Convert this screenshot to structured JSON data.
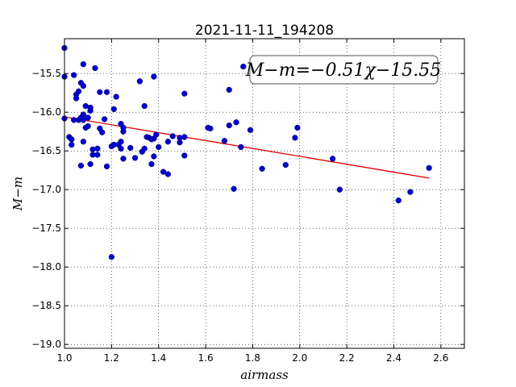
{
  "chart_data": {
    "type": "scatter",
    "title": "2021-11-11_194208",
    "xlabel": "airmass",
    "ylabel": "M−m",
    "annotation": "M−m=−0.51χ−15.55",
    "xlim": [
      1.0,
      2.7
    ],
    "ylim": [
      -19.05,
      -15.05
    ],
    "y_inverted": false,
    "grid": true,
    "xticks": [
      1.0,
      1.2,
      1.4,
      1.6,
      1.8,
      2.0,
      2.2,
      2.4,
      2.6
    ],
    "xtick_labels": [
      "1.0",
      "1.2",
      "1.4",
      "1.6",
      "1.8",
      "2.0",
      "2.2",
      "2.4",
      "2.6"
    ],
    "yticks": [
      -15.5,
      -16.0,
      -16.5,
      -17.0,
      -17.5,
      -18.0,
      -18.5,
      -19.0
    ],
    "ytick_labels": [
      "−15.5",
      "−16.0",
      "−16.5",
      "−17.0",
      "−17.5",
      "−18.0",
      "−18.5",
      "−19.0"
    ],
    "point_color": "#0000cc",
    "fit_color": "#dd0000",
    "fit": {
      "slope": -0.51,
      "intercept": -15.55,
      "x_range": [
        1.0,
        2.55
      ]
    },
    "points": [
      [
        1.0,
        -15.17
      ],
      [
        1.0,
        -15.54
      ],
      [
        1.0,
        -16.08
      ],
      [
        1.02,
        -16.32
      ],
      [
        1.03,
        -16.35
      ],
      [
        1.03,
        -16.42
      ],
      [
        1.04,
        -16.1
      ],
      [
        1.04,
        -15.52
      ],
      [
        1.05,
        -15.77
      ],
      [
        1.05,
        -15.82
      ],
      [
        1.06,
        -15.73
      ],
      [
        1.06,
        -16.1
      ],
      [
        1.07,
        -15.62
      ],
      [
        1.07,
        -16.07
      ],
      [
        1.07,
        -16.69
      ],
      [
        1.08,
        -15.66
      ],
      [
        1.08,
        -16.03
      ],
      [
        1.08,
        -16.1
      ],
      [
        1.08,
        -16.38
      ],
      [
        1.08,
        -15.38
      ],
      [
        1.09,
        -15.92
      ],
      [
        1.09,
        -16.2
      ],
      [
        1.1,
        -16.07
      ],
      [
        1.1,
        -16.18
      ],
      [
        1.11,
        -15.94
      ],
      [
        1.11,
        -15.98
      ],
      [
        1.11,
        -16.67
      ],
      [
        1.12,
        -16.48
      ],
      [
        1.12,
        -16.55
      ],
      [
        1.13,
        -15.43
      ],
      [
        1.14,
        -16.47
      ],
      [
        1.14,
        -16.55
      ],
      [
        1.15,
        -15.74
      ],
      [
        1.15,
        -16.21
      ],
      [
        1.16,
        -16.26
      ],
      [
        1.17,
        -16.09
      ],
      [
        1.18,
        -15.74
      ],
      [
        1.18,
        -16.7
      ],
      [
        1.2,
        -17.87
      ],
      [
        1.2,
        -16.44
      ],
      [
        1.21,
        -15.96
      ],
      [
        1.21,
        -16.42
      ],
      [
        1.22,
        -15.8
      ],
      [
        1.23,
        -16.42
      ],
      [
        1.24,
        -16.15
      ],
      [
        1.24,
        -16.38
      ],
      [
        1.24,
        -16.47
      ],
      [
        1.25,
        -16.25
      ],
      [
        1.25,
        -16.2
      ],
      [
        1.25,
        -16.6
      ],
      [
        1.28,
        -16.46
      ],
      [
        1.3,
        -16.59
      ],
      [
        1.32,
        -15.6
      ],
      [
        1.33,
        -16.51
      ],
      [
        1.34,
        -15.92
      ],
      [
        1.34,
        -16.47
      ],
      [
        1.35,
        -16.32
      ],
      [
        1.36,
        -16.33
      ],
      [
        1.37,
        -16.35
      ],
      [
        1.37,
        -16.67
      ],
      [
        1.38,
        -16.34
      ],
      [
        1.38,
        -16.57
      ],
      [
        1.38,
        -15.54
      ],
      [
        1.39,
        -16.29
      ],
      [
        1.4,
        -16.45
      ],
      [
        1.42,
        -16.77
      ],
      [
        1.44,
        -16.38
      ],
      [
        1.44,
        -16.8
      ],
      [
        1.46,
        -16.31
      ],
      [
        1.49,
        -16.33
      ],
      [
        1.49,
        -16.39
      ],
      [
        1.51,
        -16.32
      ],
      [
        1.51,
        -16.56
      ],
      [
        1.51,
        -15.76
      ],
      [
        1.61,
        -16.2
      ],
      [
        1.62,
        -16.21
      ],
      [
        1.68,
        -16.37
      ],
      [
        1.7,
        -15.71
      ],
      [
        1.7,
        -16.17
      ],
      [
        1.72,
        -16.99
      ],
      [
        1.73,
        -16.13
      ],
      [
        1.75,
        -16.45
      ],
      [
        1.76,
        -15.41
      ],
      [
        1.79,
        -16.23
      ],
      [
        1.84,
        -16.73
      ],
      [
        1.94,
        -16.68
      ],
      [
        1.98,
        -16.33
      ],
      [
        1.99,
        -16.2
      ],
      [
        2.14,
        -16.6
      ],
      [
        2.17,
        -17.0
      ],
      [
        2.42,
        -17.14
      ],
      [
        2.47,
        -17.03
      ],
      [
        2.55,
        -16.72
      ]
    ]
  }
}
